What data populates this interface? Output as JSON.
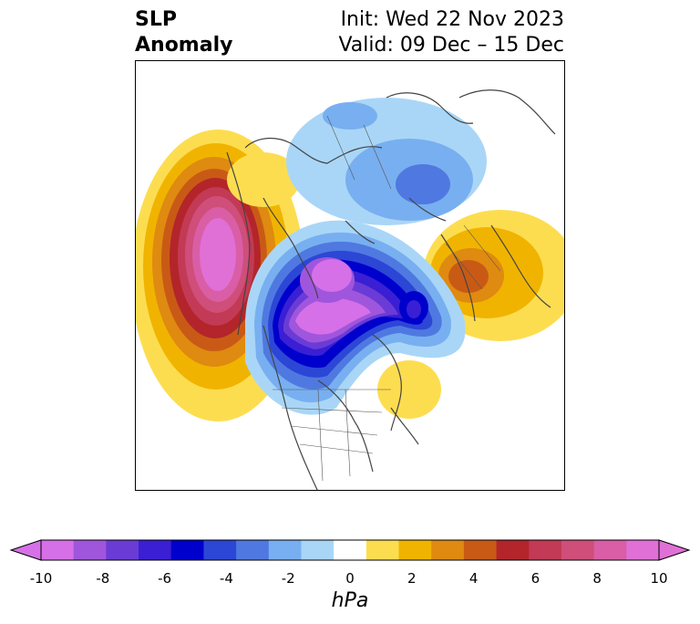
{
  "title": {
    "left_line1": "SLP",
    "left_line2": "Anomaly",
    "right_line1": "Init: Wed 22 Nov 2023",
    "right_line2": "Valid: 09 Dec – 15 Dec"
  },
  "colorbar": {
    "unit": "hPa",
    "ticks": [
      "-10",
      "-8",
      "-6",
      "-4",
      "-2",
      "0",
      "2",
      "4",
      "6",
      "8",
      "10"
    ],
    "colors": [
      "#d670e8",
      "#9f56dd",
      "#6b3bd6",
      "#3a1fd4",
      "#0000cc",
      "#2c46d6",
      "#4f79e0",
      "#78aff0",
      "#a9d6f7",
      "#ffffff",
      "#fddd50",
      "#f0b400",
      "#df8a10",
      "#c95a16",
      "#b3252a",
      "#c23a55",
      "#cf4e7a",
      "#d95ea6",
      "#e070d6"
    ],
    "min_arrow_color": "#d670e8",
    "max_arrow_color": "#e070d6"
  }
}
